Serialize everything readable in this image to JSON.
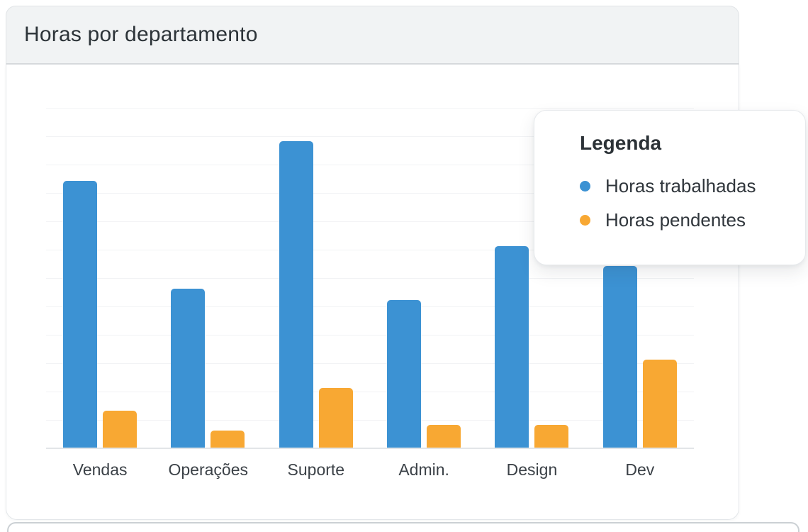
{
  "header": {
    "title": "Horas por departamento"
  },
  "legend": {
    "title": "Legenda",
    "items": [
      {
        "label": "Horas trabalhadas",
        "color": "#3c92d3"
      },
      {
        "label": "Horas pendentes",
        "color": "#f8a833"
      }
    ]
  },
  "chart_data": {
    "type": "bar",
    "title": "Horas por departamento",
    "categories": [
      "Vendas",
      "Operações",
      "Suporte",
      "Admin.",
      "Design",
      "Dev"
    ],
    "series": [
      {
        "name": "Horas trabalhadas",
        "color": "#3c92d3",
        "values": [
          94,
          56,
          108,
          52,
          71,
          64
        ]
      },
      {
        "name": "Horas pendentes",
        "color": "#f8a833",
        "values": [
          13,
          6,
          21,
          8,
          8,
          31
        ]
      }
    ],
    "xlabel": "",
    "ylabel": "",
    "ylim": [
      0,
      120
    ],
    "grid": true,
    "grid_step": 10,
    "y_axis_labels_visible": false,
    "legend_position": "floating top-right overlay"
  },
  "colors": {
    "series_blue": "#3c92d3",
    "series_orange": "#f8a833"
  }
}
